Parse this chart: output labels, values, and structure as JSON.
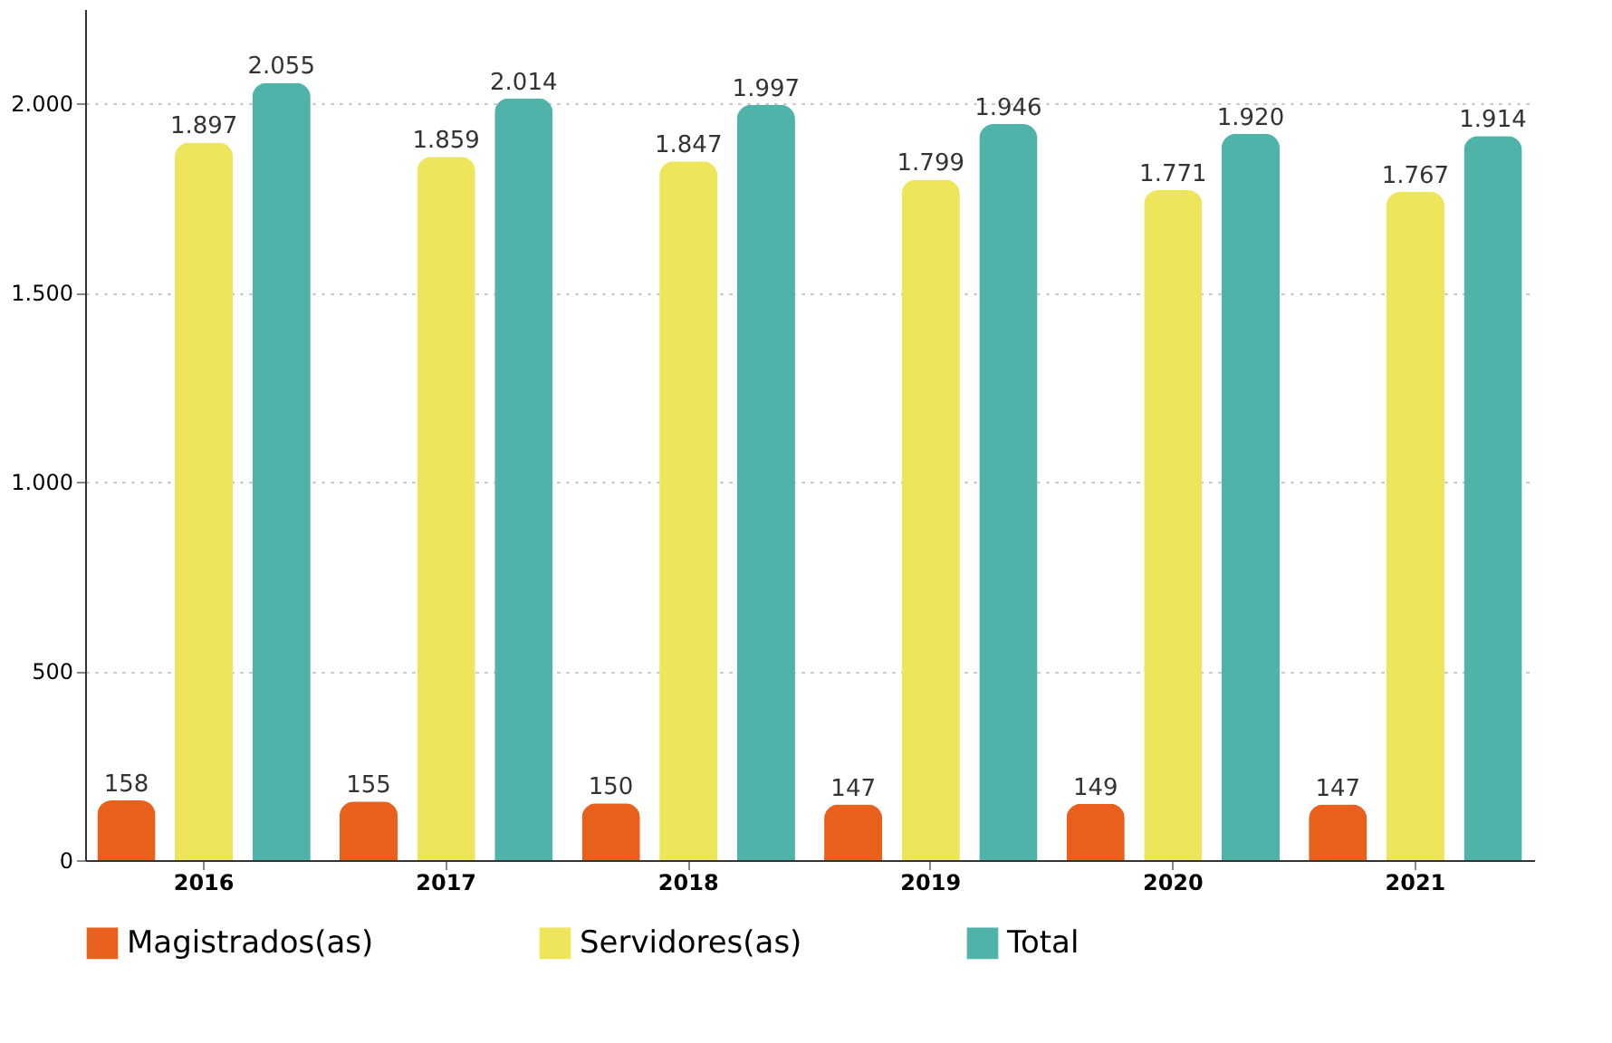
{
  "chart_data": {
    "type": "bar",
    "categories": [
      "2016",
      "2017",
      "2018",
      "2019",
      "2020",
      "2021"
    ],
    "series": [
      {
        "name": "Magistrados(as)",
        "color": "#e8601c",
        "values": [
          158,
          155,
          150,
          147,
          149,
          147
        ],
        "value_labels": [
          "158",
          "155",
          "150",
          "147",
          "149",
          "147"
        ]
      },
      {
        "name": "Servidores(as)",
        "color": "#ede55a",
        "values": [
          1897,
          1859,
          1847,
          1799,
          1771,
          1767
        ],
        "value_labels": [
          "1.897",
          "1.859",
          "1.847",
          "1.799",
          "1.771",
          "1.767"
        ]
      },
      {
        "name": "Total",
        "color": "#4fb3a9",
        "values": [
          2055,
          2014,
          1997,
          1946,
          1920,
          1914
        ],
        "value_labels": [
          "2.055",
          "2.014",
          "1.997",
          "1.946",
          "1.920",
          "1.914"
        ]
      }
    ],
    "ylim": [
      0,
      2250
    ],
    "yticks": [
      0,
      500,
      {
        "value": 1000,
        "label": "1.000"
      },
      {
        "value": 1500,
        "label": "1.500"
      },
      {
        "value": 2000,
        "label": "2.000"
      }
    ],
    "grid": "y",
    "legend": "bottom"
  }
}
